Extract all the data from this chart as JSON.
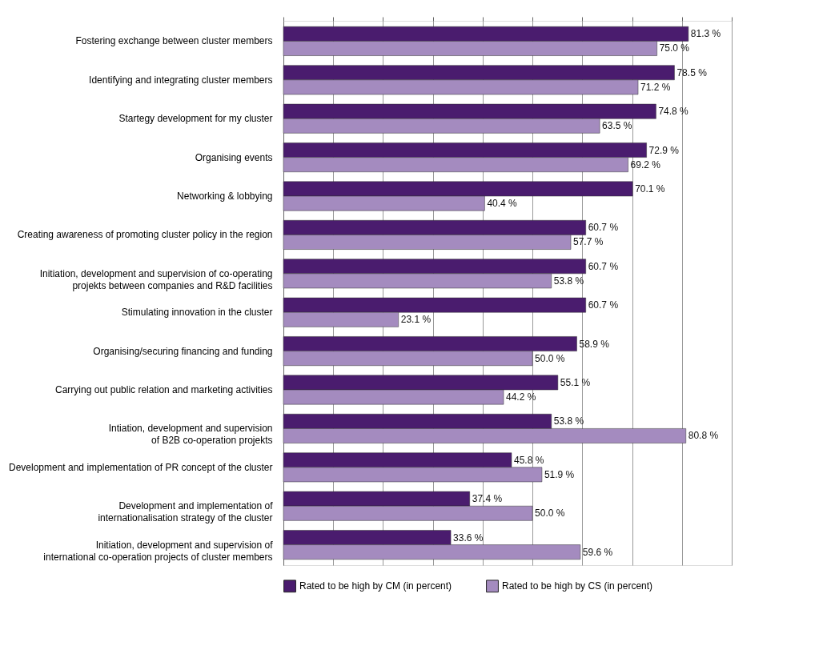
{
  "chart_data": {
    "type": "bar",
    "orientation": "horizontal",
    "categories": [
      "Fostering exchange between cluster members",
      "Identifying and integrating cluster members",
      "Startegy development for my cluster",
      "Organising events",
      "Networking & lobbying",
      "Creating awareness of promoting cluster policy in the region",
      "Initiation, development and supervision of co-operating\nprojekts between companies and R&D facilities",
      "Stimulating innovation in the cluster",
      "Organising/securing financing and funding",
      "Carrying out public relation and marketing activities",
      "Intiation, development and supervision\nof B2B co-operation projekts",
      "Development and implementation of PR concept of the cluster",
      "Development and implementation of\ninternationalisation strategy of the cluster",
      "Initiation, development and supervision of\ninternational co-operation projects of cluster members"
    ],
    "series": [
      {
        "name": "Rated to be high by CM (in percent)",
        "color": "#4a1c6e",
        "values": [
          81.3,
          78.5,
          74.8,
          72.9,
          70.1,
          60.7,
          60.7,
          60.7,
          58.9,
          55.1,
          53.8,
          45.8,
          37.4,
          33.6
        ],
        "value_labels": [
          "81.3 %",
          "78.5 %",
          "74.8 %",
          "72.9 %",
          "70.1 %",
          "60.7 %",
          "60.7 %",
          "60.7 %",
          "58.9 %",
          "55.1 %",
          "53.8 %",
          "45.8 %",
          "37.4 %",
          "33.6 %"
        ]
      },
      {
        "name": "Rated to be high by CS (in percent)",
        "color": "#a48bbf",
        "values": [
          75.0,
          71.2,
          63.5,
          69.2,
          40.4,
          57.7,
          53.8,
          23.1,
          50.0,
          44.2,
          80.8,
          51.9,
          50.0,
          59.6
        ],
        "value_labels": [
          "75.0 %",
          "71.2 %",
          "63.5 %",
          "69.2 %",
          "40.4 %",
          "57.7 %",
          "53.8 %",
          "23.1 %",
          "50.0 %",
          "44.2 %",
          "80.8 %",
          "51.9 %",
          "50.0 %",
          "59.6 %"
        ]
      }
    ],
    "xlim": [
      0,
      90
    ],
    "xticks": [
      {
        "value": 0,
        "label": null
      },
      {
        "value": 10,
        "label": null
      },
      {
        "value": 20,
        "label": null
      },
      {
        "value": 30,
        "label": null
      },
      {
        "value": 40,
        "label": null
      },
      {
        "value": 50,
        "label": null
      },
      {
        "value": 60,
        "label": null
      },
      {
        "value": 70,
        "label": null
      },
      {
        "value": 80,
        "label": null
      },
      {
        "value": 90,
        "label": null
      }
    ],
    "tick_labels": "y",
    "grid": "x",
    "legend": "bottom"
  }
}
